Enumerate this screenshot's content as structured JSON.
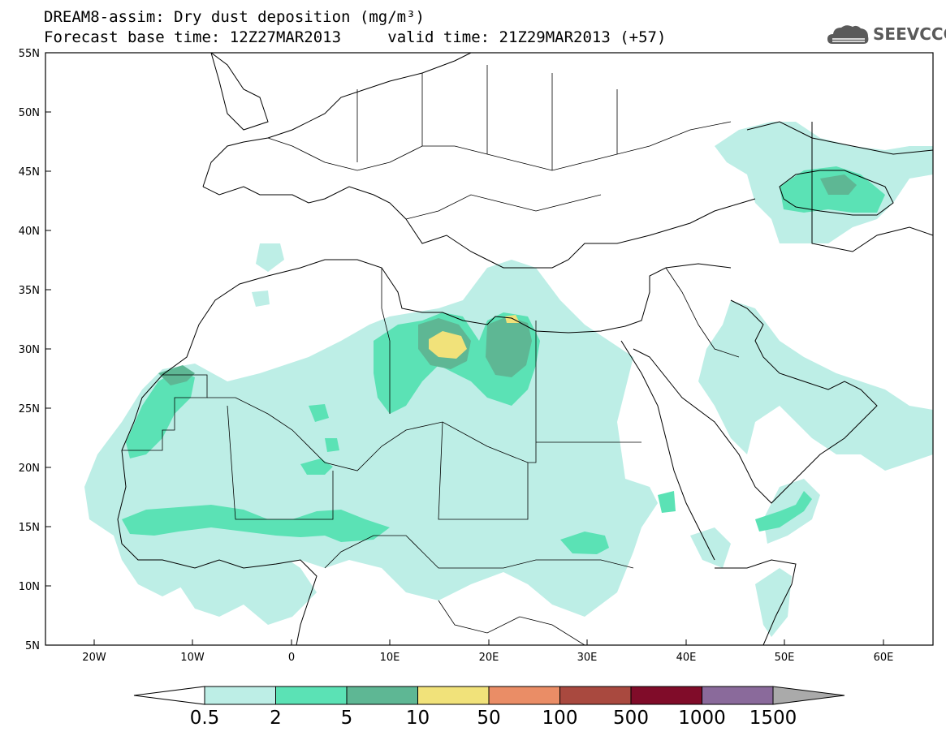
{
  "title_line1": "DREAM8-assim: Dry dust deposition (mg/m³)",
  "base_time": "Forecast base time: 12Z27MAR2013",
  "valid_time": "valid time: 21Z29MAR2013 (+57)",
  "logo_text": "SEEVCCC",
  "logo_icon": "cloud-icon",
  "map": {
    "lat_ticks": [
      "55N",
      "50N",
      "45N",
      "40N",
      "35N",
      "30N",
      "25N",
      "20N",
      "15N",
      "10N",
      "5N"
    ],
    "lon_ticks": [
      "20W",
      "10W",
      "0",
      "10E",
      "20E",
      "30E",
      "40E",
      "50E",
      "60E"
    ]
  },
  "colorbar": {
    "labels": [
      "0.5",
      "2",
      "5",
      "10",
      "50",
      "100",
      "500",
      "1000",
      "1500"
    ],
    "colors": [
      "#bdeee6",
      "#5be2b5",
      "#5eb794",
      "#f1e27a",
      "#ea8d66",
      "#a9493f",
      "#800c29",
      "#8a6a9b"
    ],
    "under_color": "#ffffff",
    "over_color": "#aaaaaa"
  }
}
